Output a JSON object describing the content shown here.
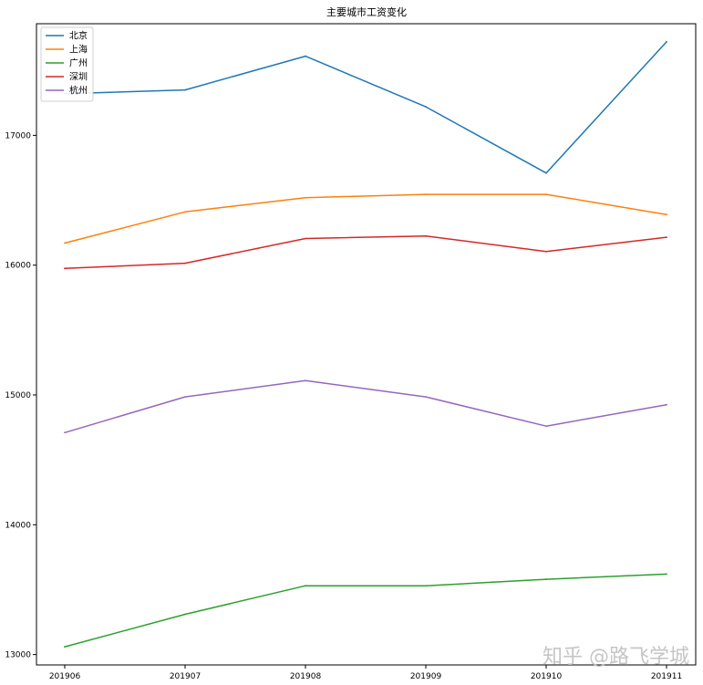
{
  "chart_data": {
    "type": "line",
    "title": "主要城市工资变化",
    "xlabel": "",
    "ylabel": "",
    "categories": [
      "201906",
      "201907",
      "201908",
      "201909",
      "201910",
      "201911"
    ],
    "ylim": [
      12920,
      17860
    ],
    "yticks": [
      13000,
      14000,
      15000,
      16000,
      17000
    ],
    "grid": false,
    "legend_position": "top-left",
    "series": [
      {
        "name": "北京",
        "color": "#1f77b4",
        "values": [
          17320,
          17350,
          17610,
          17220,
          16710,
          17720
        ]
      },
      {
        "name": "上海",
        "color": "#ff7f0e",
        "values": [
          16170,
          16410,
          16520,
          16545,
          16545,
          16390
        ]
      },
      {
        "name": "广州",
        "color": "#2ca02c",
        "values": [
          13060,
          13310,
          13530,
          13530,
          13580,
          13620
        ]
      },
      {
        "name": "深圳",
        "color": "#d62728",
        "values": [
          15975,
          16015,
          16205,
          16225,
          16105,
          16215
        ]
      },
      {
        "name": "杭州",
        "color": "#9467bd",
        "values": [
          14710,
          14985,
          15110,
          14985,
          14760,
          14925
        ]
      }
    ]
  },
  "watermark": "知乎 @路飞学城"
}
